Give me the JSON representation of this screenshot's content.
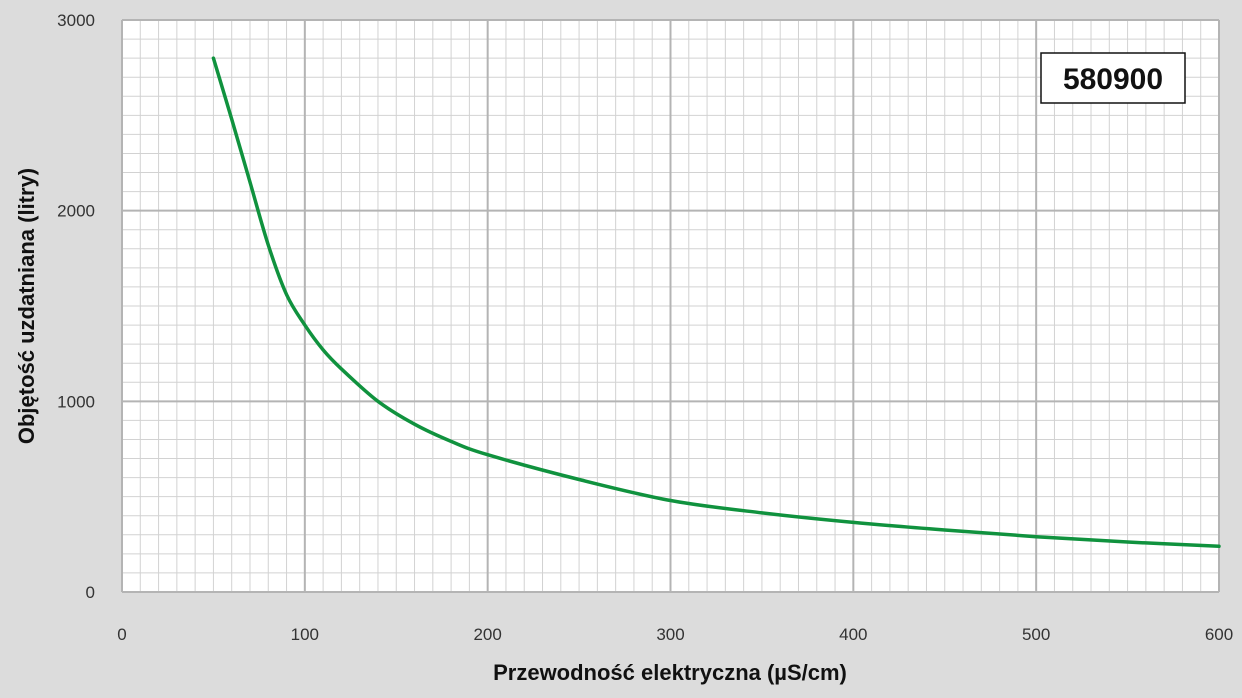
{
  "chart_data": {
    "type": "line",
    "title": "",
    "badge": "580900",
    "xlabel": "Przewodność elektryczna (µS/cm)",
    "ylabel": "Objętość uzdatniana (litry)",
    "xlim": [
      0,
      600
    ],
    "ylim": [
      0,
      3000
    ],
    "x_ticks": [
      "0",
      "100",
      "200",
      "300",
      "400",
      "500",
      "600"
    ],
    "y_ticks": [
      "0",
      "1000",
      "2000",
      "3000"
    ],
    "grid": true,
    "colors": {
      "background": "#dcdcdc",
      "plot": "#ffffff",
      "grid_major": "#b4b4b4",
      "grid_minor": "#d2d2d2",
      "line": "#10923e"
    },
    "series": [
      {
        "x": [
          50,
          60,
          70,
          80,
          90,
          100,
          110,
          120,
          140,
          160,
          180,
          200,
          250,
          300,
          350,
          400,
          450,
          500,
          550,
          600
        ],
        "values": [
          2800,
          2480,
          2150,
          1820,
          1560,
          1400,
          1270,
          1170,
          1000,
          880,
          790,
          720,
          590,
          480,
          415,
          365,
          325,
          290,
          262,
          240
        ]
      }
    ]
  }
}
